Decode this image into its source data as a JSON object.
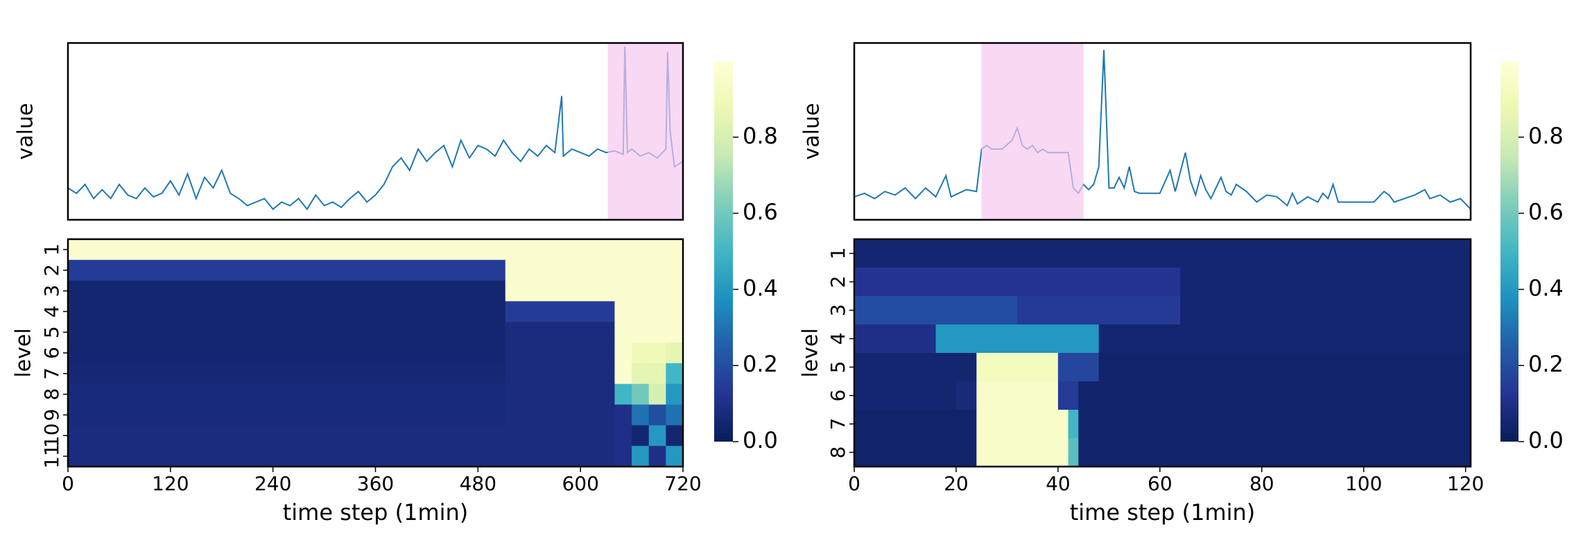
{
  "chart_data": [
    {
      "type": "line",
      "ylabel": "value",
      "color": "#1f77b4",
      "highlight": [
        632,
        720
      ],
      "highlight_color": "#f7c8f0",
      "xlim": [
        0,
        720
      ],
      "ylim": [
        0,
        1
      ],
      "x": [
        0,
        10,
        20,
        30,
        40,
        50,
        60,
        70,
        80,
        90,
        100,
        110,
        120,
        130,
        140,
        150,
        160,
        170,
        180,
        190,
        200,
        210,
        220,
        230,
        240,
        250,
        260,
        270,
        280,
        290,
        300,
        310,
        320,
        330,
        340,
        350,
        360,
        370,
        380,
        390,
        400,
        410,
        420,
        430,
        440,
        450,
        460,
        470,
        480,
        490,
        500,
        510,
        520,
        530,
        540,
        550,
        560,
        570,
        578,
        580,
        590,
        600,
        610,
        620,
        630,
        640,
        650,
        652,
        655,
        660,
        670,
        680,
        690,
        700,
        702,
        705,
        710,
        720
      ],
      "values": [
        0.18,
        0.15,
        0.2,
        0.12,
        0.17,
        0.12,
        0.2,
        0.14,
        0.12,
        0.18,
        0.13,
        0.15,
        0.22,
        0.14,
        0.26,
        0.12,
        0.24,
        0.18,
        0.28,
        0.15,
        0.12,
        0.08,
        0.1,
        0.12,
        0.06,
        0.1,
        0.08,
        0.12,
        0.06,
        0.14,
        0.08,
        0.1,
        0.07,
        0.12,
        0.16,
        0.1,
        0.14,
        0.2,
        0.3,
        0.35,
        0.28,
        0.4,
        0.33,
        0.38,
        0.42,
        0.3,
        0.45,
        0.35,
        0.42,
        0.4,
        0.36,
        0.45,
        0.38,
        0.33,
        0.4,
        0.36,
        0.42,
        0.38,
        0.7,
        0.36,
        0.4,
        0.38,
        0.36,
        0.4,
        0.38,
        0.39,
        0.37,
        0.98,
        0.38,
        0.4,
        0.36,
        0.38,
        0.35,
        0.4,
        0.95,
        0.5,
        0.3,
        0.33
      ]
    },
    {
      "type": "heatmap",
      "ylabel": "level",
      "xlabel": "time step (1min)",
      "xlim": [
        0,
        720
      ],
      "xticks": [
        0,
        120,
        240,
        360,
        480,
        600,
        720
      ],
      "levels": [
        1,
        2,
        3,
        4,
        5,
        6,
        7,
        8,
        9,
        10,
        11
      ],
      "x_edges": [
        0,
        512,
        640,
        660,
        680,
        700,
        720
      ],
      "values": [
        [
          0.97,
          0.97,
          0.97,
          0.97,
          0.97,
          0.97
        ],
        [
          0.15,
          0.97,
          0.97,
          0.97,
          0.97,
          0.97
        ],
        [
          0.05,
          0.97,
          0.97,
          0.97,
          0.97,
          0.97
        ],
        [
          0.05,
          0.15,
          0.97,
          0.97,
          0.97,
          0.97
        ],
        [
          0.05,
          0.08,
          0.97,
          0.97,
          0.97,
          0.97
        ],
        [
          0.05,
          0.08,
          0.97,
          0.9,
          0.9,
          0.85
        ],
        [
          0.06,
          0.08,
          0.97,
          0.85,
          0.85,
          0.5
        ],
        [
          0.07,
          0.08,
          0.5,
          0.6,
          0.8,
          0.4
        ],
        [
          0.07,
          0.08,
          0.1,
          0.3,
          0.2,
          0.3
        ],
        [
          0.08,
          0.08,
          0.1,
          0.05,
          0.4,
          0.05
        ],
        [
          0.08,
          0.08,
          0.1,
          0.4,
          0.1,
          0.4
        ]
      ],
      "colorbar_lim": [
        0,
        1
      ],
      "colorbar_ticks": [
        {
          "value": 0,
          "label": "0.0"
        },
        {
          "value": 0.2,
          "label": "0.2"
        },
        {
          "value": 0.4,
          "label": "0.4"
        },
        {
          "value": 0.6,
          "label": "0.6"
        },
        {
          "value": 0.8,
          "label": "0.8"
        }
      ]
    },
    {
      "type": "line",
      "ylabel": "value",
      "color": "#1f77b4",
      "highlight": [
        25,
        45
      ],
      "highlight_color": "#f7c8f0",
      "xlim": [
        0,
        121
      ],
      "ylim": [
        0,
        1
      ],
      "x": [
        0,
        2,
        4,
        6,
        8,
        10,
        12,
        14,
        16,
        18,
        19,
        22,
        24,
        25,
        26,
        27,
        29,
        31,
        32,
        33,
        34,
        35,
        36,
        37,
        38,
        40,
        42,
        43,
        44,
        45,
        46,
        47,
        48,
        49,
        50,
        51,
        52,
        53,
        54,
        55,
        56,
        58,
        60,
        62,
        63,
        65,
        66,
        67,
        68,
        69,
        70,
        72,
        73,
        74,
        75,
        77,
        79,
        81,
        83,
        85,
        86,
        87,
        89,
        91,
        92,
        93,
        94,
        95,
        100,
        102,
        104,
        105,
        106,
        108,
        110,
        112,
        113,
        115,
        117,
        119,
        121
      ],
      "values": [
        0.13,
        0.15,
        0.12,
        0.16,
        0.14,
        0.18,
        0.12,
        0.18,
        0.13,
        0.25,
        0.13,
        0.17,
        0.16,
        0.4,
        0.42,
        0.4,
        0.4,
        0.45,
        0.52,
        0.42,
        0.4,
        0.42,
        0.38,
        0.4,
        0.38,
        0.38,
        0.38,
        0.18,
        0.15,
        0.2,
        0.17,
        0.2,
        0.3,
        0.96,
        0.18,
        0.18,
        0.24,
        0.18,
        0.3,
        0.16,
        0.15,
        0.15,
        0.15,
        0.28,
        0.16,
        0.38,
        0.22,
        0.14,
        0.25,
        0.17,
        0.12,
        0.24,
        0.16,
        0.14,
        0.2,
        0.16,
        0.1,
        0.14,
        0.13,
        0.08,
        0.15,
        0.09,
        0.13,
        0.1,
        0.15,
        0.12,
        0.2,
        0.1,
        0.1,
        0.1,
        0.16,
        0.14,
        0.1,
        0.12,
        0.14,
        0.17,
        0.12,
        0.14,
        0.1,
        0.12,
        0.06
      ]
    },
    {
      "type": "heatmap",
      "ylabel": "level",
      "xlabel": "time step (1min)",
      "xlim": [
        0,
        121
      ],
      "xticks": [
        0,
        20,
        40,
        60,
        80,
        100,
        120
      ],
      "levels": [
        1,
        2,
        3,
        4,
        5,
        6,
        7,
        8
      ],
      "x_edges": [
        0,
        16,
        20,
        24,
        32,
        40,
        42,
        44,
        48,
        64,
        121
      ],
      "values": [
        [
          0.05,
          0.05,
          0.05,
          0.05,
          0.05,
          0.05,
          0.05,
          0.05,
          0.05,
          0.05
        ],
        [
          0.12,
          0.12,
          0.12,
          0.12,
          0.12,
          0.12,
          0.12,
          0.12,
          0.12,
          0.05
        ],
        [
          0.2,
          0.2,
          0.2,
          0.2,
          0.14,
          0.14,
          0.14,
          0.14,
          0.14,
          0.05
        ],
        [
          0.1,
          0.4,
          0.4,
          0.4,
          0.4,
          0.4,
          0.4,
          0.4,
          0.05,
          0.05
        ],
        [
          0.05,
          0.05,
          0.05,
          0.92,
          0.92,
          0.18,
          0.18,
          0.18,
          0.04,
          0.04
        ],
        [
          0.05,
          0.05,
          0.07,
          0.95,
          0.95,
          0.15,
          0.15,
          0.04,
          0.04,
          0.04
        ],
        [
          0.04,
          0.04,
          0.04,
          0.95,
          0.95,
          0.95,
          0.5,
          0.04,
          0.04,
          0.04
        ],
        [
          0.04,
          0.04,
          0.04,
          0.95,
          0.95,
          0.95,
          0.55,
          0.04,
          0.04,
          0.04
        ]
      ],
      "colorbar_lim": [
        0,
        1
      ],
      "colorbar_ticks": [
        {
          "value": 0,
          "label": "0.0"
        },
        {
          "value": 0.2,
          "label": "0.2"
        },
        {
          "value": 0.4,
          "label": "0.4"
        },
        {
          "value": 0.6,
          "label": "0.6"
        },
        {
          "value": 0.8,
          "label": "0.8"
        }
      ]
    }
  ]
}
